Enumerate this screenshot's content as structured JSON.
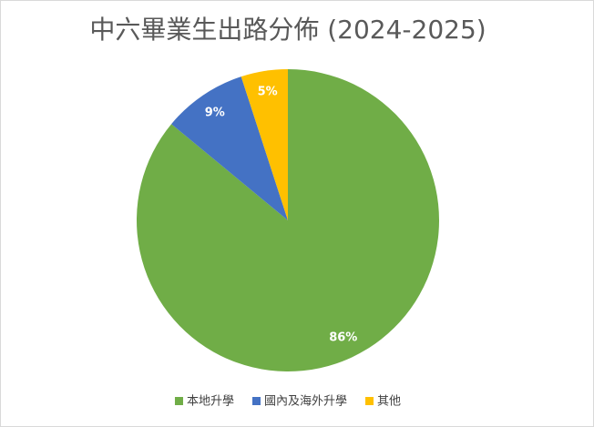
{
  "chart_data": {
    "type": "pie",
    "title": "中六畢業生出路分佈 (2024-2025)",
    "categories": [
      "本地升學",
      "國內及海外升學",
      "其他"
    ],
    "values": [
      86,
      9,
      5
    ],
    "value_labels": [
      "86%",
      "9%",
      "5%"
    ],
    "colors": [
      "#70ad47",
      "#4472c4",
      "#ffc000"
    ]
  }
}
